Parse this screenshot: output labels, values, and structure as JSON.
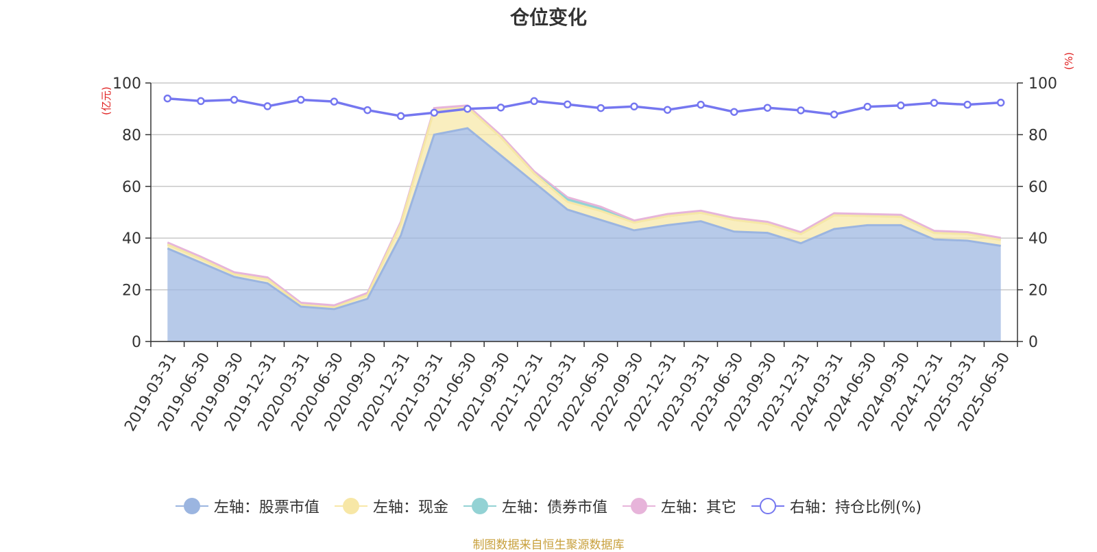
{
  "title": "仓位变化",
  "source": "制图数据来自恒生聚源数据库",
  "units": {
    "left": "(亿元)",
    "right": "(%)"
  },
  "legend": [
    {
      "label": "左轴：股票市值",
      "color": "#9bb5e0",
      "style": "filled"
    },
    {
      "label": "左轴：现金",
      "color": "#f7e7a6",
      "style": "filled"
    },
    {
      "label": "左轴：债券市值",
      "color": "#93d2d4",
      "style": "filled"
    },
    {
      "label": "左轴：其它",
      "color": "#e7b4da",
      "style": "filled"
    },
    {
      "label": "右轴：持仓比例(%)",
      "color": "#7577f0",
      "style": "hollow"
    }
  ],
  "chart_data": {
    "type": "area",
    "categories": [
      "2019-03-31",
      "2019-06-30",
      "2019-09-30",
      "2019-12-31",
      "2020-03-31",
      "2020-06-30",
      "2020-09-30",
      "2020-12-31",
      "2021-03-31",
      "2021-06-30",
      "2021-09-30",
      "2021-12-31",
      "2022-03-31",
      "2022-06-30",
      "2022-09-30",
      "2022-12-31",
      "2023-03-31",
      "2023-06-30",
      "2023-09-30",
      "2023-12-31",
      "2024-03-31",
      "2024-06-30",
      "2024-09-30",
      "2024-12-31",
      "2025-03-31",
      "2025-06-30"
    ],
    "stacked": true,
    "series": [
      {
        "name": "左轴：股票市值",
        "axis": "left",
        "color": "#9bb5e0",
        "values": [
          36,
          30.5,
          25,
          22.5,
          13.5,
          12.5,
          16.5,
          41,
          80,
          82.5,
          72,
          61.5,
          51,
          47,
          43,
          45,
          46.5,
          42.5,
          42,
          38,
          43.5,
          45,
          45,
          39.5,
          39,
          37
        ]
      },
      {
        "name": "左轴：现金",
        "axis": "left",
        "color": "#f7e7a6",
        "values": [
          1.5,
          1.5,
          1,
          1.5,
          0.7,
          0.7,
          1.5,
          4.5,
          9.5,
          8,
          7,
          3.5,
          3,
          3.5,
          3,
          3.5,
          3.3,
          4.5,
          3.5,
          3.5,
          5.3,
          3.5,
          3.2,
          2.5,
          2.5,
          2.3
        ]
      },
      {
        "name": "左轴：债券市值",
        "axis": "left",
        "color": "#93d2d4",
        "values": [
          0,
          0,
          0,
          0,
          0,
          0,
          0,
          0,
          0,
          0,
          0,
          0,
          1,
          0.8,
          0,
          0,
          0,
          0,
          0,
          0,
          0,
          0,
          0,
          0,
          0,
          0
        ]
      },
      {
        "name": "左轴：其它",
        "axis": "left",
        "color": "#e7b4da",
        "values": [
          0.8,
          0.8,
          0.8,
          0.8,
          0.8,
          0.8,
          0.8,
          0.8,
          0.8,
          0.8,
          0.8,
          0.8,
          0.8,
          0.8,
          0.8,
          0.8,
          0.8,
          0.8,
          0.8,
          0.8,
          0.8,
          0.8,
          0.8,
          0.8,
          0.8,
          0.8
        ]
      },
      {
        "name": "右轴：持仓比例(%)",
        "axis": "right",
        "type": "line",
        "color": "#7577f0",
        "values": [
          94,
          93,
          93.5,
          91,
          93.5,
          92.8,
          89.5,
          87.2,
          88.5,
          90,
          90.5,
          93,
          91.7,
          90.3,
          90.9,
          89.6,
          91.6,
          88.8,
          90.4,
          89.4,
          87.8,
          90.8,
          91.3,
          92.3,
          91.6,
          92.4
        ]
      }
    ],
    "yleft": {
      "min": 0,
      "max": 100,
      "ticks": [
        0,
        20,
        40,
        60,
        80,
        100
      ]
    },
    "yright": {
      "min": 0,
      "max": 100,
      "ticks": [
        0,
        20,
        40,
        60,
        80,
        100
      ]
    },
    "grid": true,
    "legend_position": "bottom"
  }
}
